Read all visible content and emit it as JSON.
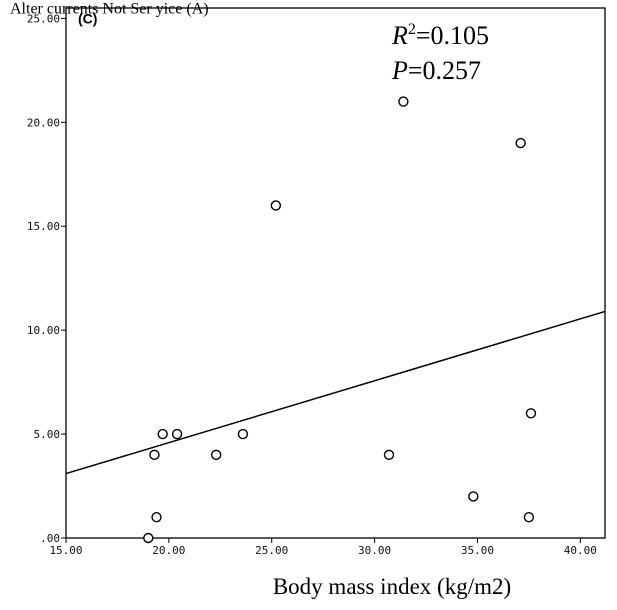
{
  "chart_data": {
    "type": "scatter",
    "title_fragment": "Alter currents Not Ser yice (A)",
    "panel_label": "(C)",
    "xlabel": "Body mass index (kg/m2)",
    "ylabel": "",
    "xlim": [
      15,
      41.2
    ],
    "ylim": [
      0,
      25.5
    ],
    "xticks": [
      15,
      20,
      25,
      30,
      35,
      40
    ],
    "yticks": [
      0,
      5,
      10,
      15,
      20,
      25
    ],
    "xtick_labels": [
      "15.00",
      "20.00",
      "25.00",
      "30.00",
      "35.00",
      "40.00"
    ],
    "ytick_labels": [
      ".00",
      "5.00",
      "10.00",
      "15.00",
      "20.00",
      "25.00"
    ],
    "grid": false,
    "stats": {
      "r2_symbol": "R",
      "r2_exp": "2",
      "r2_value": "=0.105",
      "p_symbol": "P",
      "p_value": "=0.257"
    },
    "points": [
      {
        "x": 19.0,
        "y": 0
      },
      {
        "x": 19.4,
        "y": 1
      },
      {
        "x": 19.3,
        "y": 4
      },
      {
        "x": 19.7,
        "y": 5
      },
      {
        "x": 20.4,
        "y": 5
      },
      {
        "x": 22.3,
        "y": 4
      },
      {
        "x": 23.6,
        "y": 5
      },
      {
        "x": 25.2,
        "y": 16
      },
      {
        "x": 30.7,
        "y": 4
      },
      {
        "x": 31.4,
        "y": 21
      },
      {
        "x": 34.8,
        "y": 2
      },
      {
        "x": 37.1,
        "y": 19
      },
      {
        "x": 37.5,
        "y": 1
      },
      {
        "x": 37.6,
        "y": 6
      }
    ],
    "fit_line": {
      "x": [
        15,
        41.2
      ],
      "y": [
        3.1,
        10.9
      ]
    },
    "colors": {
      "marker_stroke": "#000000",
      "marker_fill": "#ffffff",
      "line": "#000000",
      "frame": "#000000"
    }
  }
}
